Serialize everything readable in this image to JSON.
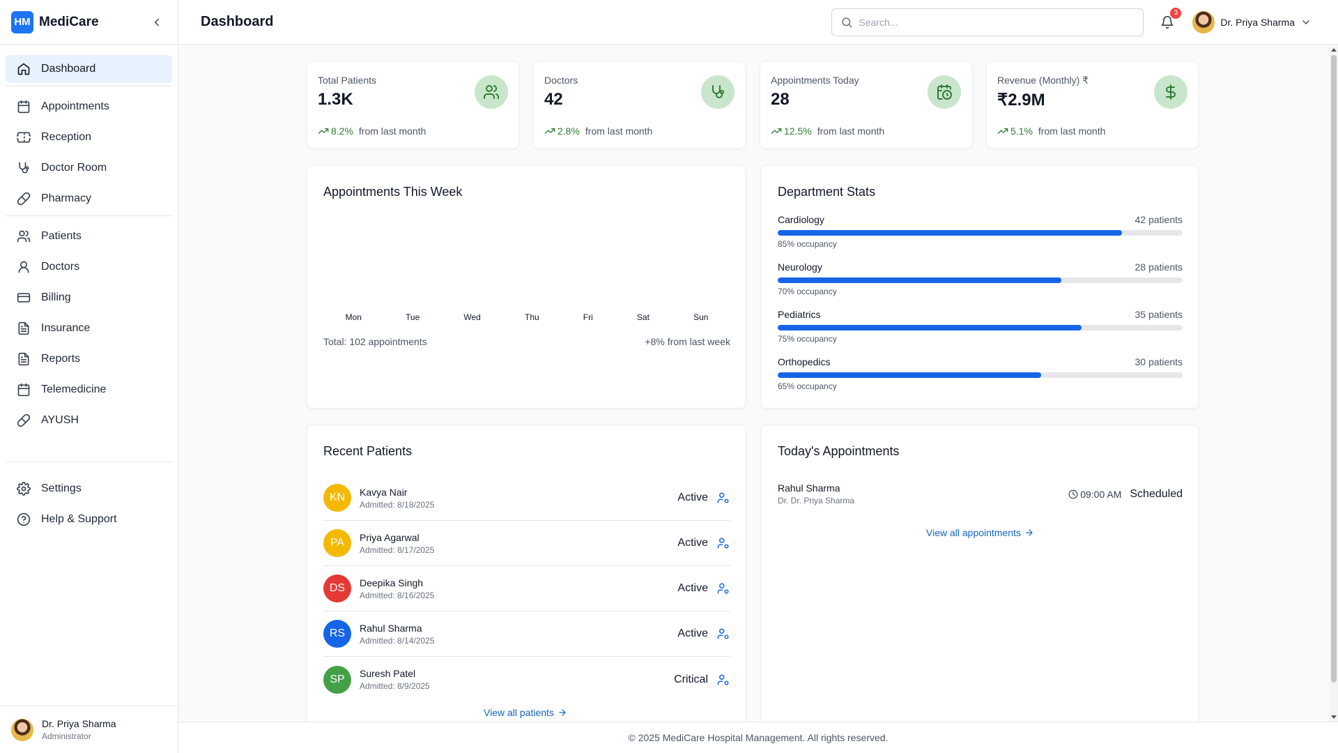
{
  "app": {
    "logo": "HM",
    "name": "MediCare"
  },
  "sidebar": {
    "items": [
      {
        "label": "Dashboard",
        "icon": "home-icon"
      },
      {
        "label": "Appointments",
        "icon": "calendar-icon"
      },
      {
        "label": "Reception",
        "icon": "ticket-icon"
      },
      {
        "label": "Doctor Room",
        "icon": "stethoscope-icon"
      },
      {
        "label": "Pharmacy",
        "icon": "pill-icon"
      },
      {
        "label": "Patients",
        "icon": "users-icon"
      },
      {
        "label": "Doctors",
        "icon": "user-icon"
      },
      {
        "label": "Billing",
        "icon": "credit-card-icon"
      },
      {
        "label": "Insurance",
        "icon": "file-text-icon"
      },
      {
        "label": "Reports",
        "icon": "file-text-icon"
      },
      {
        "label": "Telemedicine",
        "icon": "calendar-icon"
      },
      {
        "label": "AYUSH",
        "icon": "pill-icon"
      },
      {
        "label": "Settings",
        "icon": "gear-icon"
      },
      {
        "label": "Help & Support",
        "icon": "help-circle-icon"
      }
    ],
    "active_index": 0,
    "user": {
      "name": "Dr. Priya Sharma",
      "role": "Administrator"
    }
  },
  "header": {
    "title": "Dashboard",
    "search_placeholder": "Search...",
    "notification_count": "3",
    "user_name": "Dr. Priya Sharma"
  },
  "stats": [
    {
      "label": "Total Patients",
      "value": "1.3K",
      "change": "8.2%",
      "note": "from last month",
      "icon": "users-icon"
    },
    {
      "label": "Doctors",
      "value": "42",
      "change": "2.8%",
      "note": "from last month",
      "icon": "stethoscope-icon"
    },
    {
      "label": "Appointments Today",
      "value": "28",
      "change": "12.5%",
      "note": "from last month",
      "icon": "calendar-clock-icon"
    },
    {
      "label": "Revenue (Monthly) ₹",
      "value": "₹2.9M",
      "change": "5.1%",
      "note": "from last month",
      "icon": "dollar-icon"
    }
  ],
  "week": {
    "title": "Appointments This Week",
    "days": [
      "Mon",
      "Tue",
      "Wed",
      "Thu",
      "Fri",
      "Sat",
      "Sun"
    ],
    "total": "Total: 102 appointments",
    "change": "+8% from last week"
  },
  "departments": {
    "title": "Department Stats",
    "items": [
      {
        "name": "Cardiology",
        "patients": "42 patients",
        "occupancy": 85,
        "occupancy_label": "85% occupancy"
      },
      {
        "name": "Neurology",
        "patients": "28 patients",
        "occupancy": 70,
        "occupancy_label": "70% occupancy"
      },
      {
        "name": "Pediatrics",
        "patients": "35 patients",
        "occupancy": 75,
        "occupancy_label": "75% occupancy"
      },
      {
        "name": "Orthopedics",
        "patients": "30 patients",
        "occupancy": 65,
        "occupancy_label": "65% occupancy"
      }
    ]
  },
  "recent_patients": {
    "title": "Recent Patients",
    "items": [
      {
        "initials": "KN",
        "name": "Kavya Nair",
        "admitted": "Admitted: 8/18/2025",
        "status": "Active",
        "color": "#f5b800"
      },
      {
        "initials": "PA",
        "name": "Priya Agarwal",
        "admitted": "Admitted: 8/17/2025",
        "status": "Active",
        "color": "#f5b800"
      },
      {
        "initials": "DS",
        "name": "Deepika Singh",
        "admitted": "Admitted: 8/16/2025",
        "status": "Active",
        "color": "#e53935"
      },
      {
        "initials": "RS",
        "name": "Rahul Sharma",
        "admitted": "Admitted: 8/14/2025",
        "status": "Active",
        "color": "#1565e6"
      },
      {
        "initials": "SP",
        "name": "Suresh Patel",
        "admitted": "Admitted: 8/9/2025",
        "status": "Critical",
        "color": "#43a047"
      }
    ],
    "link": "View all patients"
  },
  "todays_appointments": {
    "title": "Today's Appointments",
    "items": [
      {
        "patient": "Rahul Sharma",
        "doctor": "Dr. Dr. Priya Sharma",
        "time": "09:00 AM",
        "status": "Scheduled"
      }
    ],
    "link": "View all appointments"
  },
  "footer": "© 2025 MediCare Hospital Management. All rights reserved."
}
